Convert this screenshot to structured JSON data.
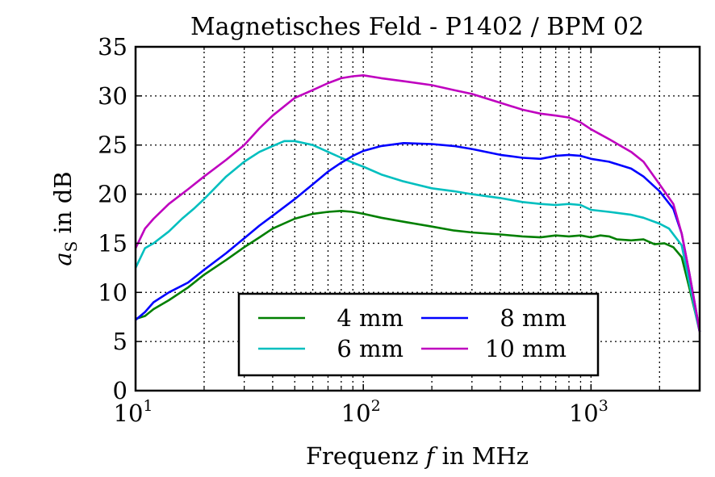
{
  "chart_data": {
    "type": "line",
    "title": "Magnetisches Feld - P1402 / BPM 02",
    "xlabel": "Frequenz f in MHz",
    "ylabel": "aS in dB",
    "ylabel_main": "a",
    "ylabel_sub": "S",
    "ylabel_rest": " in dB",
    "xlabel_pre": "Frequenz ",
    "xlabel_var": "f",
    "xlabel_post": " in MHz",
    "x_scale": "log",
    "xlim": [
      10,
      3000
    ],
    "ylim": [
      0,
      35
    ],
    "grid": true,
    "legend_position": "lower center",
    "y_ticks": [
      0,
      5,
      10,
      15,
      20,
      25,
      30,
      35
    ],
    "x_major_ticks": [
      {
        "value": 10,
        "base": "10",
        "exp": "1"
      },
      {
        "value": 100,
        "base": "10",
        "exp": "2"
      },
      {
        "value": 1000,
        "base": "10",
        "exp": "3"
      }
    ],
    "x_minor_ticks": [
      20,
      30,
      40,
      50,
      60,
      70,
      80,
      90,
      200,
      300,
      400,
      500,
      600,
      700,
      800,
      900,
      2000
    ],
    "series": [
      {
        "name": "4 mm",
        "color": "#007f00",
        "points": [
          [
            10,
            7.3
          ],
          [
            11,
            7.6
          ],
          [
            12,
            8.3
          ],
          [
            14,
            9.2
          ],
          [
            17,
            10.5
          ],
          [
            20,
            11.8
          ],
          [
            25,
            13.3
          ],
          [
            30,
            14.6
          ],
          [
            35,
            15.6
          ],
          [
            40,
            16.5
          ],
          [
            50,
            17.5
          ],
          [
            60,
            18.0
          ],
          [
            70,
            18.2
          ],
          [
            80,
            18.3
          ],
          [
            90,
            18.2
          ],
          [
            100,
            18.0
          ],
          [
            120,
            17.6
          ],
          [
            150,
            17.2
          ],
          [
            200,
            16.7
          ],
          [
            250,
            16.3
          ],
          [
            300,
            16.1
          ],
          [
            400,
            15.9
          ],
          [
            500,
            15.7
          ],
          [
            600,
            15.6
          ],
          [
            700,
            15.8
          ],
          [
            800,
            15.7
          ],
          [
            900,
            15.8
          ],
          [
            1000,
            15.6
          ],
          [
            1100,
            15.8
          ],
          [
            1200,
            15.7
          ],
          [
            1300,
            15.4
          ],
          [
            1500,
            15.3
          ],
          [
            1700,
            15.4
          ],
          [
            1900,
            14.9
          ],
          [
            2100,
            15.0
          ],
          [
            2300,
            14.6
          ],
          [
            2500,
            13.6
          ],
          [
            2700,
            10.5
          ],
          [
            2900,
            7.5
          ],
          [
            3000,
            6.0
          ]
        ]
      },
      {
        "name": "6 mm",
        "color": "#00bfbf",
        "points": [
          [
            10,
            12.5
          ],
          [
            11,
            14.5
          ],
          [
            12,
            15.0
          ],
          [
            14,
            16.2
          ],
          [
            16,
            17.5
          ],
          [
            18,
            18.5
          ],
          [
            20,
            19.5
          ],
          [
            25,
            21.8
          ],
          [
            30,
            23.3
          ],
          [
            35,
            24.3
          ],
          [
            40,
            24.9
          ],
          [
            45,
            25.4
          ],
          [
            50,
            25.4
          ],
          [
            60,
            25.0
          ],
          [
            70,
            24.3
          ],
          [
            80,
            23.7
          ],
          [
            90,
            23.2
          ],
          [
            100,
            22.8
          ],
          [
            120,
            22.0
          ],
          [
            150,
            21.3
          ],
          [
            200,
            20.6
          ],
          [
            250,
            20.3
          ],
          [
            300,
            20.0
          ],
          [
            400,
            19.6
          ],
          [
            500,
            19.2
          ],
          [
            600,
            19.0
          ],
          [
            700,
            18.9
          ],
          [
            800,
            19.0
          ],
          [
            900,
            18.9
          ],
          [
            1000,
            18.4
          ],
          [
            1200,
            18.2
          ],
          [
            1500,
            17.9
          ],
          [
            1700,
            17.6
          ],
          [
            2000,
            17.0
          ],
          [
            2200,
            16.5
          ],
          [
            2500,
            14.8
          ],
          [
            2700,
            11.0
          ],
          [
            2900,
            7.5
          ],
          [
            3000,
            6.0
          ]
        ]
      },
      {
        "name": "8 mm",
        "color": "#0000ff",
        "points": [
          [
            10,
            7.2
          ],
          [
            11,
            8.0
          ],
          [
            12,
            9.0
          ],
          [
            14,
            10.0
          ],
          [
            17,
            11.0
          ],
          [
            20,
            12.3
          ],
          [
            25,
            14.0
          ],
          [
            30,
            15.5
          ],
          [
            35,
            16.8
          ],
          [
            40,
            17.8
          ],
          [
            50,
            19.5
          ],
          [
            60,
            21.0
          ],
          [
            70,
            22.3
          ],
          [
            80,
            23.2
          ],
          [
            90,
            23.9
          ],
          [
            100,
            24.4
          ],
          [
            120,
            24.9
          ],
          [
            150,
            25.2
          ],
          [
            200,
            25.1
          ],
          [
            250,
            24.9
          ],
          [
            300,
            24.6
          ],
          [
            400,
            24.0
          ],
          [
            500,
            23.7
          ],
          [
            600,
            23.6
          ],
          [
            700,
            23.9
          ],
          [
            800,
            24.0
          ],
          [
            900,
            23.9
          ],
          [
            1000,
            23.6
          ],
          [
            1200,
            23.3
          ],
          [
            1500,
            22.6
          ],
          [
            1700,
            21.8
          ],
          [
            2000,
            20.3
          ],
          [
            2300,
            18.5
          ],
          [
            2500,
            16.0
          ],
          [
            2700,
            12.0
          ],
          [
            2900,
            8.0
          ],
          [
            3000,
            6.0
          ]
        ]
      },
      {
        "name": "10 mm",
        "color": "#bf00bf",
        "points": [
          [
            10,
            14.5
          ],
          [
            11,
            16.5
          ],
          [
            12,
            17.5
          ],
          [
            14,
            19.0
          ],
          [
            17,
            20.5
          ],
          [
            20,
            21.8
          ],
          [
            25,
            23.5
          ],
          [
            30,
            25.0
          ],
          [
            35,
            26.7
          ],
          [
            40,
            28.0
          ],
          [
            50,
            29.8
          ],
          [
            60,
            30.6
          ],
          [
            70,
            31.3
          ],
          [
            80,
            31.8
          ],
          [
            90,
            32.0
          ],
          [
            100,
            32.1
          ],
          [
            120,
            31.8
          ],
          [
            150,
            31.5
          ],
          [
            200,
            31.1
          ],
          [
            250,
            30.6
          ],
          [
            300,
            30.2
          ],
          [
            400,
            29.3
          ],
          [
            500,
            28.6
          ],
          [
            600,
            28.2
          ],
          [
            700,
            28.0
          ],
          [
            800,
            27.8
          ],
          [
            900,
            27.3
          ],
          [
            1000,
            26.6
          ],
          [
            1200,
            25.6
          ],
          [
            1500,
            24.3
          ],
          [
            1700,
            23.3
          ],
          [
            2000,
            21.0
          ],
          [
            2300,
            19.0
          ],
          [
            2500,
            16.0
          ],
          [
            2700,
            12.0
          ],
          [
            2900,
            8.0
          ],
          [
            3000,
            6.0
          ]
        ]
      }
    ]
  }
}
